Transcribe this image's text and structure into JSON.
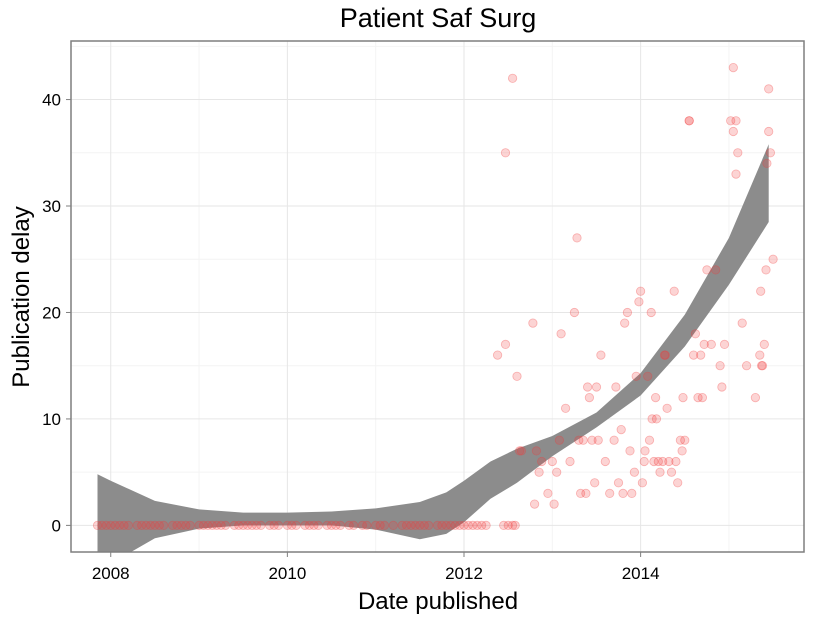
{
  "chart_data": {
    "type": "scatter",
    "title": "Patient Saf Surg",
    "xlabel": "Date published",
    "ylabel": "Publication delay",
    "xlim": [
      2007.55,
      2015.85
    ],
    "ylim": [
      -2.5,
      45.5
    ],
    "x_ticks": [
      2008,
      2010,
      2012,
      2014
    ],
    "y_ticks": [
      0,
      10,
      20,
      30,
      40
    ],
    "grid": true,
    "legend": "none",
    "colors": {
      "points": "#f03b3b",
      "band": "#8c8c8c",
      "grid_major": "#e6e6e6",
      "grid_minor": "#f4f4f4",
      "panel_border": "#7f7f7f"
    },
    "smooth_band": {
      "x": [
        2007.85,
        2008.0,
        2008.5,
        2009.0,
        2009.5,
        2010.0,
        2010.5,
        2011.0,
        2011.5,
        2011.8,
        2012.0,
        2012.3,
        2012.6,
        2013.0,
        2013.5,
        2014.0,
        2014.5,
        2015.0,
        2015.45
      ],
      "upper": [
        4.8,
        4.2,
        2.3,
        1.5,
        1.2,
        1.2,
        1.3,
        1.6,
        2.2,
        3.1,
        4.2,
        6.0,
        7.2,
        8.4,
        10.6,
        14.3,
        19.8,
        27.0,
        35.8
      ],
      "lower": [
        -4.5,
        -3.6,
        -1.2,
        -0.3,
        0.0,
        0.0,
        0.0,
        -0.4,
        -1.3,
        -0.8,
        0.3,
        2.5,
        4.0,
        6.5,
        9.2,
        12.2,
        16.8,
        22.6,
        28.5
      ]
    },
    "series": [
      {
        "x": [
          2007.85,
          2007.9,
          2007.95,
          2008.0,
          2008.05,
          2008.1,
          2008.15,
          2008.2,
          2008.3,
          2008.35,
          2008.4,
          2008.45,
          2008.5,
          2008.55,
          2008.6,
          2008.7,
          2008.75,
          2008.8,
          2008.85,
          2008.9,
          2009.0,
          2009.05,
          2009.1,
          2009.15,
          2009.2,
          2009.25,
          2009.3,
          2009.4,
          2009.45,
          2009.5,
          2009.55,
          2009.6,
          2009.65,
          2009.7,
          2009.8,
          2009.85,
          2009.9,
          2010.0,
          2010.05,
          2010.1,
          2010.2,
          2010.25,
          2010.3,
          2010.35,
          2010.45,
          2010.5,
          2010.55,
          2010.6,
          2010.7,
          2010.75,
          2010.85,
          2010.9,
          2011.0,
          2011.05,
          2011.1,
          2011.2,
          2011.3,
          2011.35,
          2011.4,
          2011.45,
          2011.5,
          2011.55,
          2011.6,
          2011.7,
          2011.75,
          2011.8,
          2011.85,
          2011.9,
          2011.95,
          2012.0,
          2012.05,
          2012.1,
          2012.15,
          2012.2,
          2012.25,
          2012.45,
          2012.5,
          2012.55,
          2012.58
        ],
        "y": [
          0,
          0,
          0,
          0,
          0,
          0,
          0,
          0,
          0,
          0,
          0,
          0,
          0,
          0,
          0,
          0,
          0,
          0,
          0,
          0,
          0,
          0,
          0,
          0,
          0,
          0,
          0,
          0,
          0,
          0,
          0,
          0,
          0,
          0,
          0,
          0,
          0,
          0,
          0,
          0,
          0,
          0,
          0,
          0,
          0,
          0,
          0,
          0,
          0,
          0,
          0,
          0,
          0,
          0,
          0,
          0,
          0,
          0,
          0,
          0,
          0,
          0,
          0,
          0,
          0,
          0,
          0,
          0,
          0,
          0,
          0,
          0,
          0,
          0,
          0,
          0,
          0,
          0,
          0
        ]
      },
      {
        "x": [
          2012.38,
          2012.47,
          2012.55,
          2012.6,
          2012.63,
          2012.65,
          2012.78,
          2012.8,
          2012.82,
          2012.85,
          2012.88,
          2012.95,
          2013.0,
          2013.02,
          2013.05,
          2013.08,
          2013.1,
          2013.15,
          2013.2,
          2013.25,
          2013.28,
          2013.3,
          2013.32,
          2013.35,
          2013.38,
          2013.4,
          2013.42,
          2013.45,
          2013.48,
          2013.5,
          2013.52,
          2013.55,
          2013.6,
          2013.65,
          2013.7,
          2013.72,
          2013.75,
          2013.78,
          2013.8,
          2013.82,
          2013.85,
          2013.88,
          2013.9,
          2013.93,
          2013.95,
          2013.98,
          2014.0,
          2014.02,
          2014.04,
          2014.05,
          2014.08,
          2014.1,
          2014.12,
          2014.13,
          2014.15,
          2014.17,
          2014.18,
          2014.2,
          2014.22,
          2014.25,
          2014.27,
          2014.28,
          2014.3,
          2014.32,
          2014.35,
          2014.38,
          2014.4,
          2014.42,
          2014.45,
          2014.47,
          2014.48,
          2014.5,
          2014.55,
          2014.6,
          2014.62,
          2014.65,
          2014.68,
          2014.7,
          2014.72,
          2014.75,
          2014.8,
          2014.85,
          2014.9,
          2014.92,
          2014.95,
          2015.02,
          2015.05,
          2015.08,
          2015.1,
          2015.15,
          2015.2,
          2015.3,
          2015.35,
          2015.36,
          2015.37,
          2015.38,
          2015.4,
          2015.42,
          2015.43,
          2015.45,
          2015.5
        ],
        "y": [
          16,
          17,
          42,
          14,
          7,
          7,
          19,
          2,
          7,
          5,
          6,
          3,
          6,
          2,
          5,
          8,
          18,
          11,
          6,
          20,
          27,
          8,
          3,
          8,
          3,
          13,
          12,
          8,
          4,
          13,
          8,
          16,
          6,
          3,
          8,
          13,
          4,
          9,
          3,
          19,
          20,
          7,
          3,
          5,
          14,
          21,
          22,
          4,
          6,
          7,
          14,
          8,
          20,
          10,
          6,
          12,
          10,
          6,
          5,
          6,
          16,
          16,
          11,
          6,
          5,
          22,
          6,
          4,
          8,
          7,
          12,
          8,
          38,
          16,
          18,
          12,
          16,
          12,
          17,
          24,
          17,
          24,
          15,
          13,
          17,
          38,
          37,
          33,
          35,
          19,
          15,
          12,
          16,
          22,
          15,
          15,
          17,
          24,
          34,
          37,
          25
        ]
      },
      {
        "x": [
          2012.47,
          2014.55,
          2015.05,
          2015.08,
          2015.45,
          2015.47
        ],
        "y": [
          35,
          38,
          43,
          38,
          41,
          35
        ]
      }
    ]
  }
}
